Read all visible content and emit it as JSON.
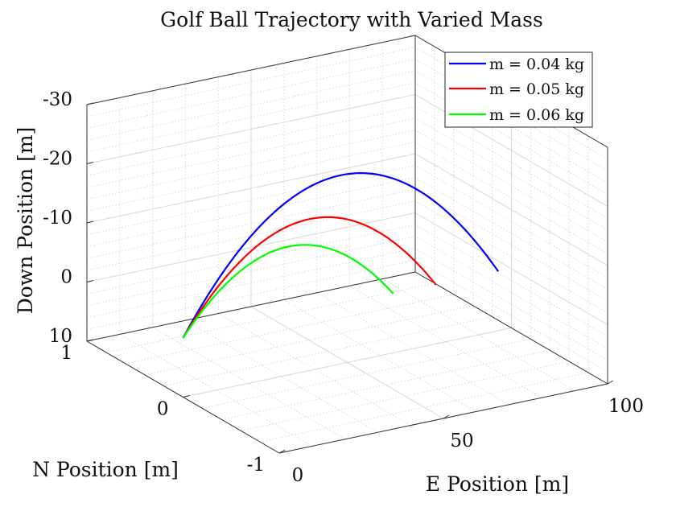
{
  "chart_data": {
    "type": "line",
    "title": "Golf Ball Trajectory with Varied Mass",
    "xlabel": "E Position [m]",
    "ylabel": "N Position [m]",
    "zlabel": "Down Position [m]",
    "xlim": [
      0,
      100
    ],
    "ylim": [
      -1,
      1
    ],
    "zlim": [
      -30,
      10
    ],
    "z_reversed": true,
    "grid": true,
    "minor_grid": true,
    "legend_position": "top-right",
    "x_ticks": [
      0,
      50,
      100
    ],
    "x_tick_labels": [
      "0",
      "50",
      "100"
    ],
    "y_ticks": [
      -1,
      0,
      1
    ],
    "y_tick_labels": [
      "-1",
      "0",
      "1"
    ],
    "z_ticks": [
      -30,
      -20,
      -10,
      0,
      10
    ],
    "z_tick_labels": [
      "-30",
      "-20",
      "-10",
      "0",
      "10"
    ],
    "series": [
      {
        "name": "m = 0.04 kg",
        "color": "#0000ff",
        "x_end": 96,
        "z_min": -21.9,
        "z_end": 0
      },
      {
        "name": "m = 0.05 kg",
        "color": "#ff0000",
        "x_end": 77,
        "z_min": -15.6,
        "z_end": 0
      },
      {
        "name": "m = 0.06 kg",
        "color": "#00ff00",
        "x_end": 64,
        "z_min": -11.7,
        "z_end": 0
      }
    ]
  }
}
